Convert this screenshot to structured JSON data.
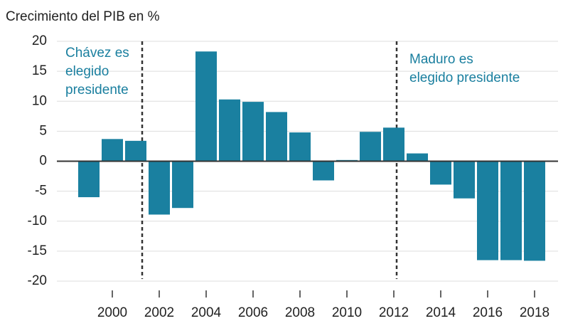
{
  "chart_data": {
    "type": "bar",
    "title": "Crecimiento del PIB en %",
    "categories": [
      null,
      "2000",
      null,
      "2002",
      null,
      "2004",
      null,
      "2006",
      null,
      "2008",
      null,
      "2010",
      null,
      "2012",
      null,
      "2014",
      null,
      "2016",
      null,
      "2018"
    ],
    "values": [
      -6,
      3.7,
      3.4,
      -8.9,
      -7.8,
      18.3,
      10.3,
      9.9,
      8.2,
      4.8,
      -3.2,
      0.2,
      4.9,
      5.6,
      1.3,
      -3.9,
      -6.2,
      -16.5,
      -16.5,
      -16.6
    ],
    "color": "#1a80a0",
    "ylim": [
      -20,
      20
    ],
    "yticks": [
      20,
      15,
      10,
      5,
      0,
      -5,
      -10,
      -15,
      -20
    ],
    "grid": true,
    "annotations": [
      [
        "Chávez es",
        "elegido",
        "presidente"
      ],
      [
        "Maduro es",
        "elegido presidente"
      ]
    ]
  }
}
